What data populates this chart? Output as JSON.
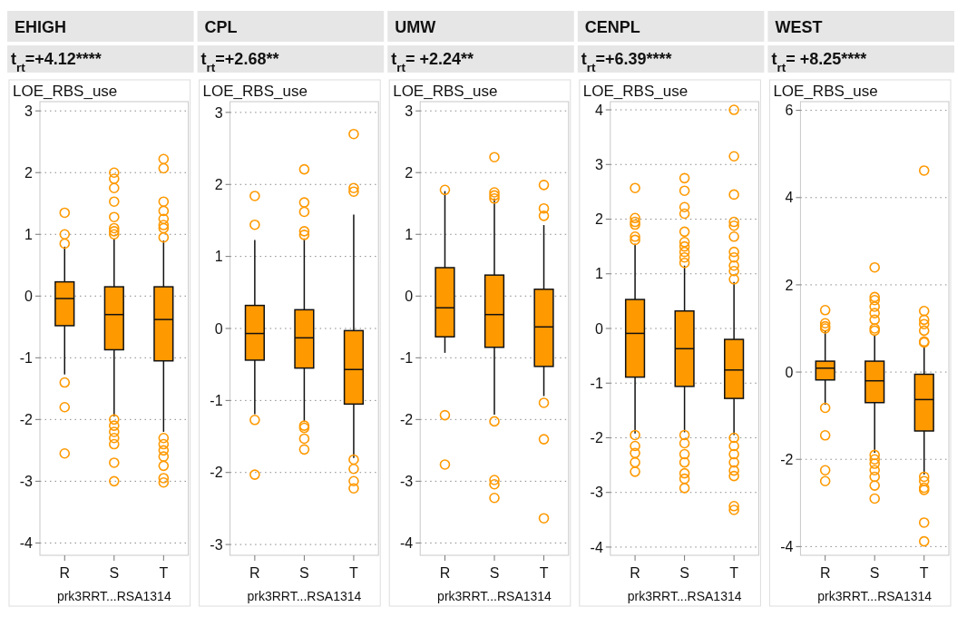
{
  "chart_data": [
    {
      "type": "box",
      "title": "EHIGH",
      "subtitle": "t$_{rt}$=+4.12****",
      "ylabel": "LOE_RBS_use",
      "xlabel": "prk3RRT...RSA1314",
      "categories": [
        "R",
        "S",
        "T"
      ],
      "color": "#ff9900",
      "grid": "y",
      "ylim": [
        -4.2,
        3.15
      ],
      "yticks": [
        -4,
        -3,
        -2,
        -1,
        0,
        1,
        2,
        3
      ],
      "boxes": [
        {
          "low": -1.27,
          "q1": -0.48,
          "median": -0.04,
          "q3": 0.23,
          "high": 0.8,
          "outliers": [
            1.35,
            1.0,
            0.85,
            -1.4,
            -1.8,
            -2.55
          ]
        },
        {
          "low": -1.95,
          "q1": -0.87,
          "median": -0.3,
          "q3": 0.15,
          "high": 0.93,
          "outliers": [
            1.0,
            1.05,
            1.1,
            1.28,
            1.53,
            1.75,
            1.9,
            2.0,
            -2.0,
            -2.1,
            -2.2,
            -2.3,
            -2.4,
            -2.7,
            -3.0
          ]
        },
        {
          "low": -2.2,
          "q1": -1.05,
          "median": -0.38,
          "q3": 0.15,
          "high": 0.9,
          "outliers": [
            0.95,
            1.1,
            1.15,
            1.25,
            1.38,
            1.53,
            2.07,
            2.22,
            -2.3,
            -2.4,
            -2.5,
            -2.6,
            -2.75,
            -2.95,
            -3.02
          ]
        }
      ]
    },
    {
      "type": "box",
      "title": "CPL",
      "subtitle": "t$_{rt}$=+2.68**",
      "ylabel": "LOE_RBS_use",
      "xlabel": "prk3RRT...RSA1314",
      "categories": [
        "R",
        "S",
        "T"
      ],
      "color": "#ff9900",
      "grid": "y",
      "ylim": [
        -3.15,
        3.15
      ],
      "yticks": [
        -3,
        -2,
        -1,
        0,
        1,
        2,
        3
      ],
      "boxes": [
        {
          "low": -1.19,
          "q1": -0.44,
          "median": -0.07,
          "q3": 0.32,
          "high": 1.23,
          "outliers": [
            1.84,
            1.44,
            -1.27,
            -2.03
          ]
        },
        {
          "low": -1.3,
          "q1": -0.55,
          "median": -0.13,
          "q3": 0.26,
          "high": 1.25,
          "outliers": [
            2.21,
            1.75,
            1.62,
            1.35,
            1.3,
            -1.35,
            -1.38,
            -1.53,
            -1.68
          ]
        },
        {
          "low": -1.8,
          "q1": -1.05,
          "median": -0.57,
          "q3": -0.03,
          "high": 1.58,
          "outliers": [
            2.7,
            1.95,
            1.9,
            -1.82,
            -1.95,
            -2.12,
            -2.22
          ]
        }
      ]
    },
    {
      "type": "box",
      "title": "UMW",
      "subtitle": "t$_{rt}$= +2.24**",
      "ylabel": "LOE_RBS_use",
      "xlabel": "prk3RRT...RSA1314",
      "categories": [
        "R",
        "S",
        "T"
      ],
      "color": "#ff9900",
      "grid": "y",
      "ylim": [
        -4.2,
        3.15
      ],
      "yticks": [
        -4,
        -3,
        -2,
        -1,
        0,
        1,
        2,
        3
      ],
      "boxes": [
        {
          "low": -0.92,
          "q1": -0.66,
          "median": -0.19,
          "q3": 0.46,
          "high": 1.7,
          "outliers": [
            1.72,
            -1.93,
            -2.73
          ]
        },
        {
          "low": -1.92,
          "q1": -0.83,
          "median": -0.3,
          "q3": 0.34,
          "high": 1.58,
          "outliers": [
            2.25,
            1.68,
            1.63,
            1.58,
            -2.03,
            -2.98,
            -3.05,
            -3.27
          ]
        },
        {
          "low": -1.62,
          "q1": -1.14,
          "median": -0.5,
          "q3": 0.11,
          "high": 1.15,
          "outliers": [
            1.8,
            1.42,
            1.3,
            -1.73,
            -2.32,
            -3.6
          ]
        }
      ]
    },
    {
      "type": "box",
      "title": "CENPL",
      "subtitle": "t$_{rt}$=+6.39****",
      "ylabel": "LOE_RBS_use",
      "xlabel": "prk3RRT...RSA1314",
      "categories": [
        "R",
        "S",
        "T"
      ],
      "color": "#ff9900",
      "grid": "y",
      "ylim": [
        -4.15,
        4.15
      ],
      "yticks": [
        -4,
        -3,
        -2,
        -1,
        0,
        1,
        2,
        3,
        4
      ],
      "boxes": [
        {
          "low": -1.92,
          "q1": -0.89,
          "median": -0.09,
          "q3": 0.53,
          "high": 1.55,
          "outliers": [
            2.57,
            2.02,
            1.95,
            1.9,
            1.68,
            1.62,
            -1.95,
            -2.15,
            -2.28,
            -2.45,
            -2.62
          ]
        },
        {
          "low": -1.9,
          "q1": -1.06,
          "median": -0.37,
          "q3": 0.32,
          "high": 1.15,
          "outliers": [
            2.75,
            2.52,
            2.22,
            2.1,
            1.77,
            1.58,
            1.5,
            1.4,
            1.3,
            1.2,
            -1.95,
            -2.1,
            -2.3,
            -2.45,
            -2.65,
            -2.75,
            -2.92
          ]
        },
        {
          "low": -1.95,
          "q1": -1.28,
          "median": -0.76,
          "q3": -0.2,
          "high": 0.85,
          "outliers": [
            4.0,
            3.15,
            2.45,
            1.95,
            1.88,
            1.68,
            1.4,
            1.3,
            1.15,
            1.05,
            0.9,
            -2.0,
            -2.15,
            -2.3,
            -2.45,
            -2.6,
            -2.7,
            -3.25,
            -3.32
          ]
        }
      ]
    },
    {
      "type": "box",
      "title": "WEST",
      "subtitle": "t$_{rt}$= +8.25****",
      "ylabel": "LOE_RBS_use",
      "xlabel": "prk3RRT...RSA1314",
      "categories": [
        "R",
        "S",
        "T"
      ],
      "color": "#ff9900",
      "grid": "y",
      "ylim": [
        -4.2,
        6.2
      ],
      "yticks": [
        -4,
        -2,
        0,
        2,
        4,
        6
      ],
      "boxes": [
        {
          "low": -0.75,
          "q1": -0.18,
          "median": 0.09,
          "q3": 0.25,
          "high": 0.95,
          "outliers": [
            1.42,
            1.12,
            1.05,
            1.0,
            -0.82,
            -1.45,
            -2.25,
            -2.5
          ]
        },
        {
          "low": -1.85,
          "q1": -0.7,
          "median": -0.2,
          "q3": 0.25,
          "high": 0.85,
          "outliers": [
            2.4,
            1.72,
            1.65,
            1.5,
            1.35,
            1.2,
            1.0,
            0.95,
            -1.9,
            -2.0,
            -2.1,
            -2.25,
            -2.4,
            -2.6,
            -2.9
          ]
        },
        {
          "low": -2.35,
          "q1": -1.35,
          "median": -0.63,
          "q3": -0.05,
          "high": 0.6,
          "outliers": [
            4.62,
            1.4,
            1.2,
            1.1,
            0.95,
            0.7,
            0.68,
            -2.4,
            -2.5,
            -2.65,
            -2.7,
            -3.45,
            -3.88
          ]
        }
      ]
    }
  ]
}
